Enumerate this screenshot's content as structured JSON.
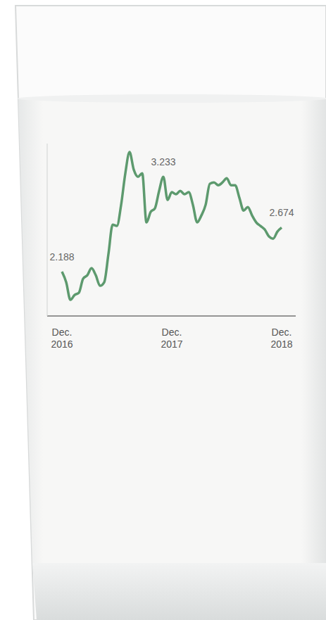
{
  "chart_data": {
    "type": "line",
    "categories": [
      "Dec. 2016",
      null,
      null,
      null,
      null,
      null,
      null,
      null,
      null,
      null,
      null,
      null,
      null,
      null,
      null,
      null,
      null,
      null,
      null,
      null,
      null,
      null,
      null,
      null,
      null,
      null,
      "Dec. 2017",
      null,
      null,
      null,
      null,
      null,
      null,
      null,
      null,
      null,
      null,
      null,
      null,
      null,
      null,
      null,
      null,
      null,
      null,
      null,
      null,
      null,
      null,
      null,
      null,
      null,
      "Dec. 2018"
    ],
    "values": [
      2.188,
      2.072,
      1.878,
      1.932,
      1.955,
      2.11,
      2.149,
      2.227,
      2.149,
      2.033,
      2.072,
      2.382,
      2.707,
      2.692,
      2.924,
      3.273,
      3.506,
      3.312,
      3.234,
      3.273,
      2.731,
      2.847,
      2.886,
      3.079,
      3.233,
      2.979,
      3.064,
      3.041,
      3.079,
      3.041,
      3.064,
      2.924,
      2.731,
      2.808,
      2.924,
      3.157,
      3.172,
      3.141,
      3.172,
      3.219,
      3.141,
      3.141,
      3.002,
      2.862,
      2.901,
      2.808,
      2.731,
      2.692,
      2.653,
      2.576,
      2.552,
      2.63,
      2.674
    ],
    "color": "#5d9a6e",
    "ylim": [
      1.7,
      3.6
    ],
    "grid": false,
    "tick_labels": "x",
    "annotations": [
      {
        "index": 0,
        "label": "2.188"
      },
      {
        "index": 24,
        "label": "3.233"
      },
      {
        "index": 52,
        "label": "2.674"
      }
    ]
  }
}
